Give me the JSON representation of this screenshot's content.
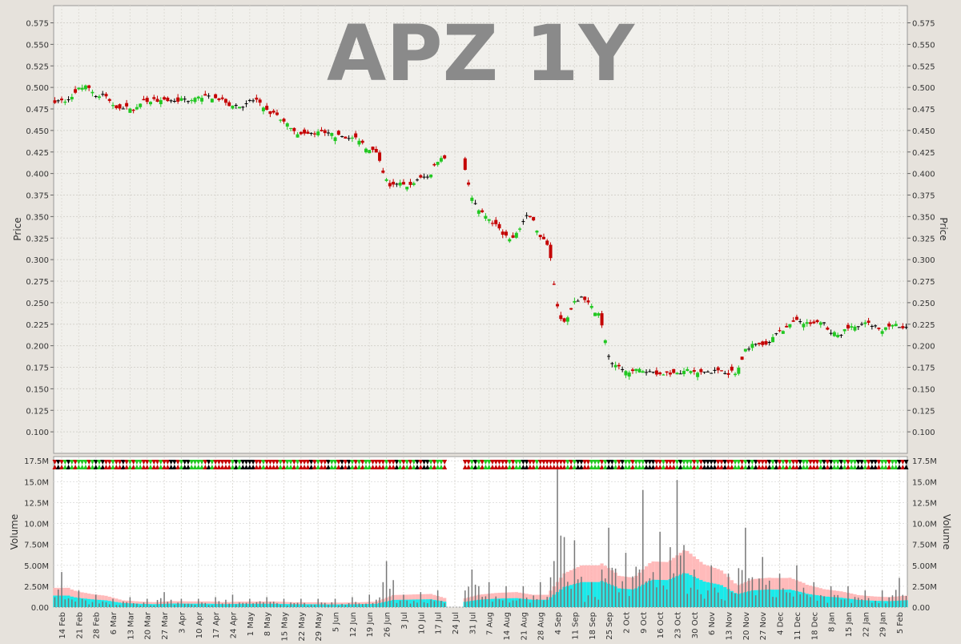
{
  "chart_data": {
    "type": "candlestick",
    "title": "APZ 1Y",
    "price_panel": {
      "ylabel": "Price",
      "ylim": [
        0.075,
        0.595
      ],
      "yticks": [
        "0.100",
        "0.125",
        "0.150",
        "0.175",
        "0.200",
        "0.225",
        "0.250",
        "0.275",
        "0.300",
        "0.325",
        "0.350",
        "0.375",
        "0.400",
        "0.425",
        "0.450",
        "0.475",
        "0.500",
        "0.525",
        "0.550",
        "0.575"
      ],
      "grid": true,
      "up_color": "#22c722",
      "down_color": "#c40000",
      "flat_color": "#000000"
    },
    "volume_panel": {
      "ylabel": "Volume",
      "ylim": [
        0,
        18000000
      ],
      "yticks": [
        "0.00",
        "2.50M",
        "5.00M",
        "7.50M",
        "10.0M",
        "12.5M",
        "15.0M",
        "17.5M"
      ],
      "grid": true,
      "bar_color": "#777777",
      "avg_band_colors": [
        "#ffb3b3",
        "#00f0f0"
      ]
    },
    "x_labels": [
      "14 Feb",
      "21 Feb",
      "28 Feb",
      "6 Mar",
      "13 Mar",
      "20 Mar",
      "27 Mar",
      "3 Apr",
      "10 Apr",
      "17 Apr",
      "24 Apr",
      "1 May",
      "8 May",
      "15 May",
      "22 May",
      "29 May",
      "5 Jun",
      "12 Jun",
      "19 Jun",
      "26 Jun",
      "3 Jul",
      "10 Jul",
      "17 Jul",
      "24 Jul",
      "31 Jul",
      "7 Aug",
      "14 Aug",
      "21 Aug",
      "28 Aug",
      "4 Sep",
      "11 Sep",
      "18 Sep",
      "25 Sep",
      "2 Oct",
      "9 Oct",
      "16 Oct",
      "23 Oct",
      "30 Oct",
      "6 Nov",
      "13 Nov",
      "20 Nov",
      "27 Nov",
      "4 Dec",
      "11 Dec",
      "18 Dec",
      "8 Jan",
      "15 Jan",
      "22 Jan",
      "29 Jan",
      "5 Feb"
    ],
    "weekly_closes": [
      0.485,
      0.5,
      0.49,
      0.478,
      0.476,
      0.485,
      0.482,
      0.486,
      0.488,
      0.487,
      0.478,
      0.485,
      0.47,
      0.455,
      0.445,
      0.447,
      0.443,
      0.44,
      0.425,
      0.385,
      0.386,
      0.395,
      0.42,
      null,
      0.36,
      0.34,
      0.325,
      0.35,
      0.32,
      0.23,
      0.255,
      0.24,
      0.175,
      0.168,
      0.17,
      0.168,
      0.17,
      0.168,
      0.17,
      0.17,
      0.2,
      0.205,
      0.22,
      0.228,
      0.225,
      0.215,
      0.222,
      0.225,
      0.22,
      0.22
    ],
    "weekly_volume_peaks_M": [
      4.2,
      2.0,
      1.5,
      1.0,
      1.2,
      1.0,
      1.8,
      1.0,
      1.0,
      1.2,
      1.5,
      1.0,
      1.2,
      1.0,
      1.0,
      1.0,
      1.0,
      1.2,
      1.5,
      5.5,
      1.5,
      1.8,
      2.0,
      null,
      4.5,
      3.0,
      2.5,
      2.5,
      3.0,
      17.5,
      8.0,
      3.0,
      9.5,
      6.5,
      14.0,
      9.0,
      15.2,
      4.5,
      5.0,
      4.0,
      9.5,
      6.0,
      4.0,
      5.0,
      3.0,
      2.5,
      2.5,
      2.0,
      2.0,
      3.5
    ]
  }
}
